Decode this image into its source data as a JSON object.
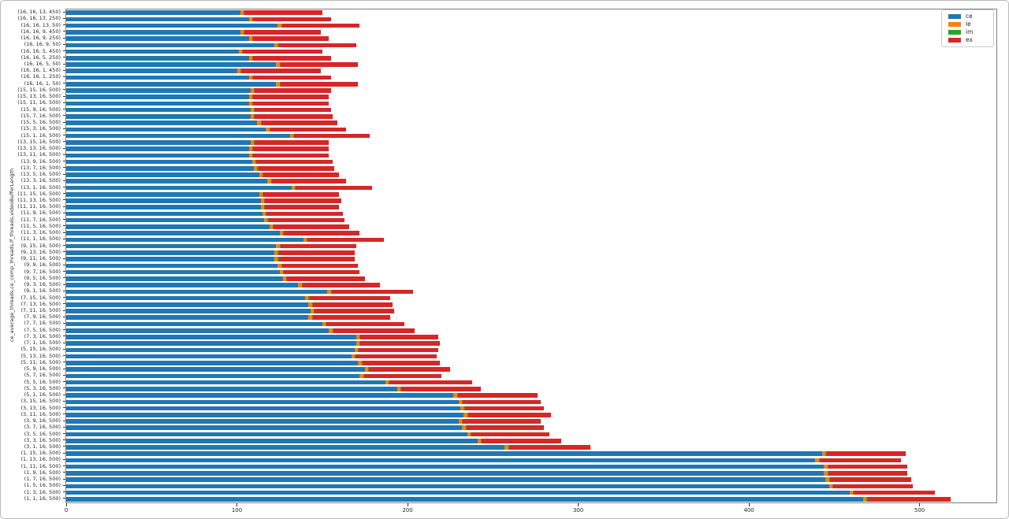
{
  "figure": {
    "kind": "matplotlib-style horizontal stacked bar chart",
    "background": "#ffffff"
  },
  "legend": {
    "position": "upper right",
    "entries": [
      {
        "label": "ce",
        "color": "#1f77b4"
      },
      {
        "label": "le",
        "color": "#ff7f0e"
      },
      {
        "label": "im",
        "color": "#2ca02c"
      },
      {
        "label": "ex",
        "color": "#d62728"
      }
    ]
  },
  "chart_data": {
    "type": "bar",
    "orientation": "horizontal",
    "stacked": true,
    "title": "",
    "xlabel": "",
    "ylabel": "ce_average_threads,ce_comp_threads,lf_threads,videoBufferLength",
    "xlim": [
      0,
      545
    ],
    "xticks": [
      0,
      100,
      200,
      300,
      400,
      500
    ],
    "grid": false,
    "categories": [
      "(16, 16, 13, 450)",
      "(16, 16, 13, 250)",
      "(16, 16, 13, 50)",
      "(16, 16, 9, 450)",
      "(16, 16, 9, 250)",
      "(16, 16, 9, 50)",
      "(16, 16, 5, 450)",
      "(16, 16, 5, 250)",
      "(16, 16, 5, 50)",
      "(16, 16, 1, 450)",
      "(16, 16, 1, 250)",
      "(16, 16, 1, 50)",
      "(15, 15, 16, 500)",
      "(15, 13, 16, 500)",
      "(15, 11, 16, 500)",
      "(15, 9, 16, 500)",
      "(15, 7, 16, 500)",
      "(15, 5, 16, 500)",
      "(15, 3, 16, 500)",
      "(15, 1, 16, 500)",
      "(13, 15, 16, 500)",
      "(13, 13, 16, 500)",
      "(13, 11, 16, 500)",
      "(13, 9, 16, 500)",
      "(13, 7, 16, 500)",
      "(13, 5, 16, 500)",
      "(13, 3, 16, 500)",
      "(13, 1, 16, 500)",
      "(11, 15, 16, 500)",
      "(11, 13, 16, 500)",
      "(11, 11, 16, 500)",
      "(11, 9, 16, 500)",
      "(11, 7, 16, 500)",
      "(11, 5, 16, 500)",
      "(11, 3, 16, 500)",
      "(11, 1, 16, 500)",
      "(9, 15, 16, 500)",
      "(9, 13, 16, 500)",
      "(9, 11, 16, 500)",
      "(9, 9, 16, 500)",
      "(9, 7, 16, 500)",
      "(9, 5, 16, 500)",
      "(9, 3, 16, 500)",
      "(9, 1, 16, 500)",
      "(7, 15, 16, 500)",
      "(7, 13, 16, 500)",
      "(7, 11, 16, 500)",
      "(7, 9, 16, 500)",
      "(7, 7, 16, 500)",
      "(7, 5, 16, 500)",
      "(7, 3, 16, 500)",
      "(7, 1, 16, 500)",
      "(5, 15, 16, 500)",
      "(5, 13, 16, 500)",
      "(5, 11, 16, 500)",
      "(5, 9, 16, 500)",
      "(5, 7, 16, 500)",
      "(5, 5, 16, 500)",
      "(5, 3, 16, 500)",
      "(5, 1, 16, 500)",
      "(3, 15, 16, 500)",
      "(3, 13, 16, 500)",
      "(3, 11, 16, 500)",
      "(3, 9, 16, 500)",
      "(3, 7, 16, 500)",
      "(3, 5, 16, 500)",
      "(3, 3, 16, 500)",
      "(3, 1, 16, 500)",
      "(1, 15, 16, 500)",
      "(1, 13, 16, 500)",
      "(1, 11, 16, 500)",
      "(1, 9, 16, 500)",
      "(1, 7, 16, 500)",
      "(1, 5, 16, 500)",
      "(1, 3, 16, 500)",
      "(1, 1, 16, 500)"
    ],
    "series": [
      {
        "name": "ce",
        "color": "#1f77b4",
        "values": [
          102,
          107,
          124,
          102,
          107,
          122,
          101,
          107,
          123,
          100,
          107,
          123,
          108,
          107,
          107,
          108,
          108,
          112,
          117,
          131,
          108,
          107,
          107,
          109,
          110,
          113,
          118,
          132,
          113,
          114,
          114,
          115,
          116,
          119,
          125,
          139,
          123,
          122,
          122,
          124,
          125,
          127,
          136,
          153,
          140,
          142,
          143,
          142,
          150,
          154,
          170,
          170,
          169,
          167,
          171,
          175,
          172,
          187,
          194,
          227,
          230,
          231,
          233,
          230,
          232,
          235,
          241,
          257,
          443,
          439,
          444,
          444,
          445,
          447,
          459,
          467
        ]
      },
      {
        "name": "le",
        "color": "#ff7f0e",
        "uniform_value": 2
      },
      {
        "name": "im",
        "color": "#2ca02c",
        "uniform_value": 0.5
      },
      {
        "name": "ex",
        "color": "#d62728",
        "values": [
          45.5,
          45.5,
          45.5,
          44.5,
          44.5,
          45.5,
          46.5,
          45.5,
          45.5,
          46.5,
          45.5,
          45.5,
          44.5,
          44.5,
          44.5,
          44.5,
          45.5,
          44.5,
          44.5,
          44.5,
          43.5,
          44.5,
          44.5,
          44.5,
          44.5,
          44.5,
          43.5,
          44.5,
          44.5,
          44.5,
          43.5,
          44.5,
          44.5,
          44.5,
          44.5,
          44.5,
          44.5,
          44.5,
          44.5,
          44.5,
          44.5,
          45.5,
          45.5,
          47.5,
          47.5,
          46.5,
          46.5,
          45.5,
          45.5,
          47.5,
          45.5,
          46.5,
          46.5,
          47.5,
          45.5,
          47.5,
          45.5,
          48.5,
          46.5,
          46.5,
          45.5,
          46.5,
          48.5,
          45.5,
          45.5,
          45.5,
          46.5,
          47.5,
          46.5,
          47.5,
          46.5,
          46.5,
          47.5,
          46.5,
          47.5,
          48.5
        ]
      }
    ]
  }
}
